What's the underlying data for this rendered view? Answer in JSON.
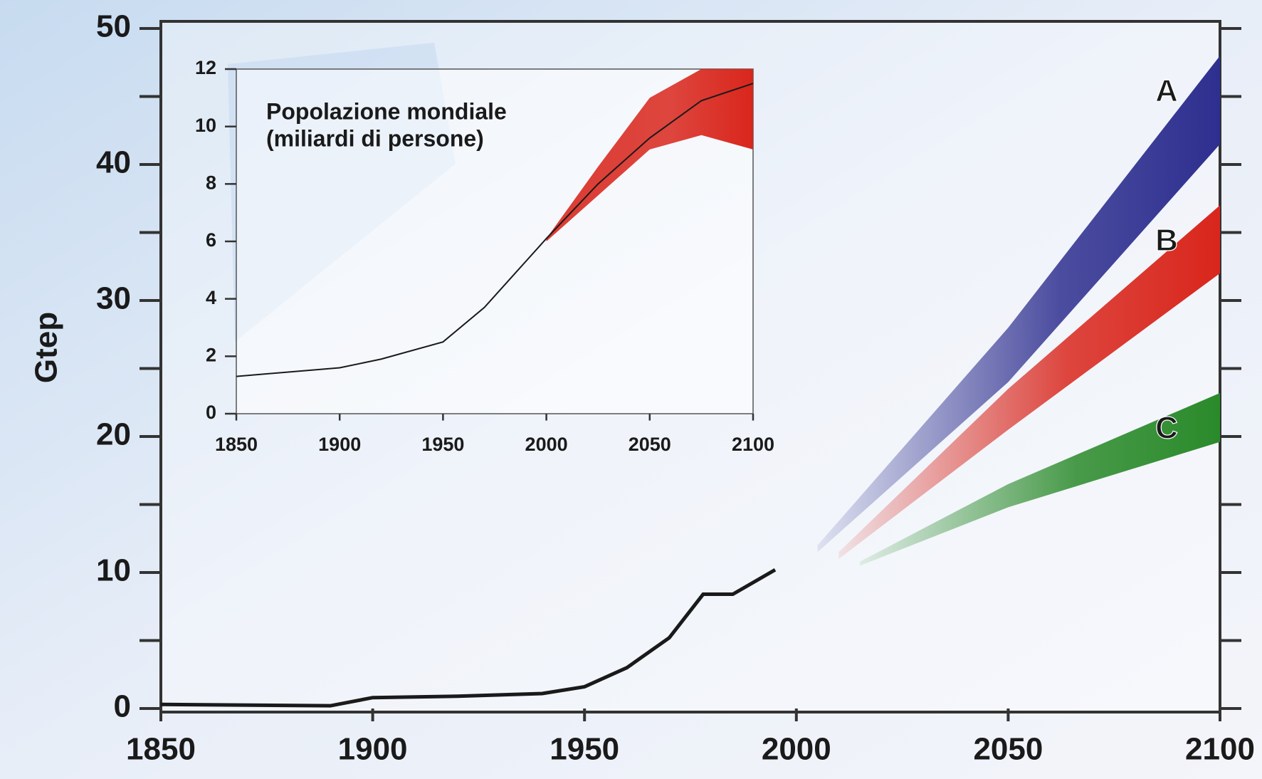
{
  "chart_data": [
    {
      "type": "line",
      "ylabel": "Gtep",
      "xlim": [
        1850,
        2100
      ],
      "xticks": [
        1850,
        1900,
        1950,
        2000,
        2050,
        2100
      ],
      "ylim": [
        0,
        50
      ],
      "yticks": [
        0,
        10,
        20,
        30,
        40,
        50
      ],
      "minor_yticks": [
        5,
        15,
        25,
        35,
        45
      ],
      "series": [
        {
          "color": "#1a1a1a",
          "x": [
            1850,
            1890,
            1900,
            1920,
            1940,
            1950,
            1960,
            1970,
            1978,
            1985,
            1995
          ],
          "values": [
            0.3,
            0.2,
            0.8,
            0.9,
            1.1,
            1.6,
            3.0,
            5.2,
            8.4,
            8.4,
            10.2
          ]
        }
      ],
      "bands": [
        {
          "name": "A",
          "color": "#2e2f8f",
          "x": [
            2005,
            2050,
            2100
          ],
          "upper": [
            12,
            28,
            48
          ],
          "lower": [
            11.5,
            24,
            41.5
          ]
        },
        {
          "name": "B",
          "color": "#d9261c",
          "x": [
            2010,
            2050,
            2100
          ],
          "upper": [
            11.5,
            23.5,
            37
          ],
          "lower": [
            11,
            20.5,
            32
          ]
        },
        {
          "name": "C",
          "color": "#2a8a2a",
          "x": [
            2015,
            2050,
            2100
          ],
          "upper": [
            10.8,
            16.5,
            23.2
          ],
          "lower": [
            10.5,
            14.8,
            19.6
          ]
        }
      ]
    },
    {
      "type": "line",
      "title": [
        "Popolazione mondiale",
        "(miliardi di persone)"
      ],
      "xlim": [
        1850,
        2100
      ],
      "xticks": [
        1850,
        1900,
        1950,
        2000,
        2050,
        2100
      ],
      "ylim": [
        0,
        12
      ],
      "yticks": [
        0,
        2,
        4,
        6,
        8,
        10,
        12
      ],
      "series": [
        {
          "color": "#1a1a1a",
          "x": [
            1850,
            1900,
            1920,
            1950,
            1970,
            1990,
            2000,
            2025,
            2050,
            2075,
            2100
          ],
          "values": [
            1.3,
            1.6,
            1.9,
            2.5,
            3.7,
            5.3,
            6.1,
            8.0,
            9.6,
            10.9,
            11.5
          ]
        }
      ],
      "bands": [
        {
          "color": "#d9261c",
          "x": [
            2000,
            2025,
            2050,
            2075,
            2100
          ],
          "upper": [
            6.1,
            8.6,
            11,
            12,
            12
          ],
          "lower": [
            6.0,
            7.6,
            9.2,
            9.7,
            9.2
          ]
        }
      ]
    }
  ]
}
